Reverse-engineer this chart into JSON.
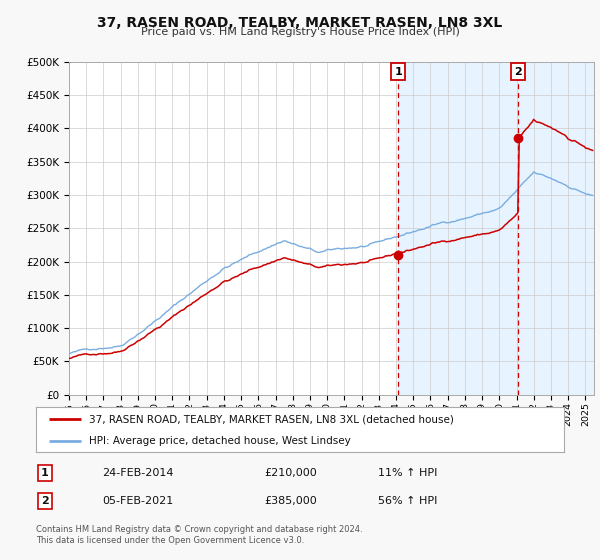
{
  "title": "37, RASEN ROAD, TEALBY, MARKET RASEN, LN8 3XL",
  "subtitle": "Price paid vs. HM Land Registry's House Price Index (HPI)",
  "legend_line1": "37, RASEN ROAD, TEALBY, MARKET RASEN, LN8 3XL (detached house)",
  "legend_line2": "HPI: Average price, detached house, West Lindsey",
  "annotation1_label": "1",
  "annotation1_date": "24-FEB-2014",
  "annotation1_price": "£210,000",
  "annotation1_hpi": "11% ↑ HPI",
  "annotation2_label": "2",
  "annotation2_date": "05-FEB-2021",
  "annotation2_price": "£385,000",
  "annotation2_hpi": "56% ↑ HPI",
  "footnote": "Contains HM Land Registry data © Crown copyright and database right 2024.\nThis data is licensed under the Open Government Licence v3.0.",
  "sale1_year": 2014.12,
  "sale1_value": 210000,
  "sale2_year": 2021.09,
  "sale2_value": 385000,
  "vline1_year": 2014.12,
  "vline2_year": 2021.09,
  "red_color": "#cc0000",
  "blue_color": "#7aade0",
  "background_color": "#f8f8f8",
  "plot_bg_color": "#ffffff",
  "shade_color": "#ddeeff",
  "ylim": [
    0,
    500000
  ],
  "xlim_start": 1995.0,
  "xlim_end": 2025.5
}
